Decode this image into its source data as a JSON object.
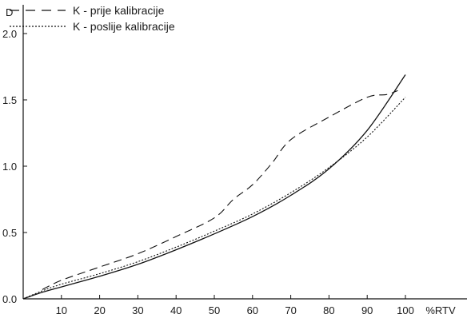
{
  "chart_data": {
    "type": "line",
    "title": "",
    "xlabel": "%RTV",
    "ylabel": "D",
    "xlim": [
      0,
      110
    ],
    "ylim": [
      0,
      2.0
    ],
    "x_ticks": [
      10,
      20,
      30,
      40,
      50,
      60,
      70,
      80,
      90,
      100
    ],
    "x_tick_labels": [
      "10",
      "20",
      "30",
      "40",
      "50",
      "60",
      "70",
      "80",
      "90",
      "100"
    ],
    "y_ticks": [
      0,
      0.5,
      1.0,
      1.5,
      2.0
    ],
    "y_tick_labels": [
      "0.0",
      "0.5",
      "1.0",
      "1.5",
      "2.0"
    ],
    "grid": false,
    "legend_position": "top-left",
    "series": [
      {
        "name": "K - prije kalibracije",
        "style": "dashed",
        "color": "#111111",
        "x": [
          5,
          10,
          20,
          30,
          40,
          50,
          55,
          60,
          65,
          70,
          80,
          90,
          95,
          98
        ],
        "y": [
          0.07,
          0.14,
          0.24,
          0.34,
          0.47,
          0.61,
          0.75,
          0.86,
          1.02,
          1.2,
          1.37,
          1.52,
          1.54,
          1.57
        ]
      },
      {
        "name": "K - poslije kalibracije",
        "style": "dotted",
        "color": "#111111",
        "x": [
          0,
          5,
          10,
          20,
          30,
          40,
          50,
          60,
          70,
          80,
          90,
          100
        ],
        "y": [
          0.0,
          0.06,
          0.11,
          0.19,
          0.28,
          0.39,
          0.51,
          0.64,
          0.8,
          0.99,
          1.22,
          1.52
        ]
      },
      {
        "style": "solid",
        "color": "#111111",
        "x": [
          0,
          5,
          10,
          20,
          30,
          40,
          50,
          60,
          70,
          80,
          90,
          100
        ],
        "y": [
          0.0,
          0.05,
          0.09,
          0.17,
          0.26,
          0.37,
          0.49,
          0.62,
          0.78,
          0.98,
          1.27,
          1.69
        ]
      }
    ]
  }
}
